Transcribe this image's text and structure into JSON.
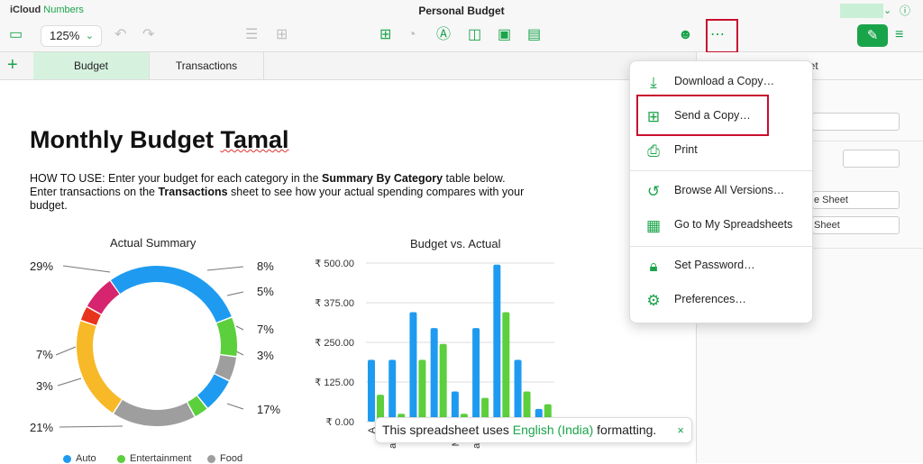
{
  "brand": {
    "part1": "iCloud",
    "part2": "Numbers"
  },
  "doc_title": "Personal Budget",
  "toolbar": {
    "zoom": "125%",
    "icons": [
      "sidebar-icon",
      "undo-icon",
      "redo-icon",
      "list-icon",
      "table-options-icon",
      "table-icon",
      "chart-icon",
      "text-icon",
      "shape-icon",
      "media-icon",
      "comment-icon",
      "collaborate-icon",
      "more-icon",
      "format-icon",
      "organize-icon"
    ]
  },
  "tabs": [
    "Budget",
    "Transactions"
  ],
  "sheet": {
    "title_part1": "Monthly Budget ",
    "title_part2": "Tamal",
    "howto_1": "HOW TO USE: Enter your budget for each category in the ",
    "howto_bold1": "Summary By Category",
    "howto_2": " table below. Enter transactions on the ",
    "howto_bold2": "Transactions",
    "howto_3": " sheet to see how your actual spending compares with your budget."
  },
  "chart_data": [
    {
      "type": "pie",
      "title": "Actual Summary",
      "labels_shown": [
        "29%",
        "8%",
        "5%",
        "7%",
        "3%",
        "17%",
        "21%",
        "3%",
        "7%"
      ],
      "slices": [
        {
          "value": 29,
          "color": "#1e9bf0"
        },
        {
          "value": 8,
          "color": "#5ccf3d"
        },
        {
          "value": 5,
          "color": "#9e9e9e"
        },
        {
          "value": 7,
          "color": "#1e9bf0"
        },
        {
          "value": 3,
          "color": "#5ccf3d"
        },
        {
          "value": 17,
          "color": "#9e9e9e"
        },
        {
          "value": 21,
          "color": "#f7b928"
        },
        {
          "value": 3,
          "color": "#e8341c"
        },
        {
          "value": 7,
          "color": "#d6246e"
        }
      ],
      "legend": [
        {
          "name": "Auto",
          "color": "#1e9bf0"
        },
        {
          "name": "Entertainment",
          "color": "#5ccf3d"
        },
        {
          "name": "Food",
          "color": "#9e9e9e"
        }
      ]
    },
    {
      "type": "bar",
      "title": "Budget vs. Actual",
      "ylim": [
        0,
        500
      ],
      "yticks": [
        "₹ 500.00",
        "₹ 375.00",
        "₹ 250.00",
        "₹ 125.00",
        "₹ 0.00"
      ],
      "categories": [
        "Auto",
        "Entertainment",
        "Food",
        "Home",
        "Medical",
        "Personal Items",
        "Travel",
        "Utilities",
        "Other"
      ],
      "category_labels_shown": [
        "A",
        "ainm",
        "Fo",
        "Ho",
        "Med",
        "al Ite",
        "Tra",
        "Utili",
        "Ot"
      ],
      "series": [
        {
          "values": [
            195,
            195,
            345,
            295,
            95,
            295,
            495,
            195,
            40
          ],
          "color": "#1e9bf0"
        },
        {
          "values": [
            85,
            25,
            195,
            245,
            25,
            75,
            345,
            95,
            55
          ],
          "color": "#5ccf3d"
        }
      ]
    }
  ],
  "panel": {
    "header": "eet",
    "btn1": "e Sheet",
    "btn2": "Sheet"
  },
  "menu": {
    "items": [
      {
        "label": "Download a Copy…",
        "icon": "download-icon"
      },
      {
        "label": "Send a Copy…",
        "icon": "send-copy-icon"
      },
      {
        "label": "Print",
        "icon": "print-icon"
      },
      {
        "label": "Browse All Versions…",
        "icon": "history-icon"
      },
      {
        "label": "Go to My Spreadsheets",
        "icon": "grid-icon"
      },
      {
        "label": "Set Password…",
        "icon": "lock-icon"
      },
      {
        "label": "Preferences…",
        "icon": "gear-icon"
      }
    ]
  },
  "toast": {
    "text1": "This spreadsheet uses ",
    "lang": "English (India)",
    "text2": " formatting.",
    "close": "×"
  },
  "colors": {
    "accent": "#1aa44a",
    "highlight": "#c8102e"
  }
}
